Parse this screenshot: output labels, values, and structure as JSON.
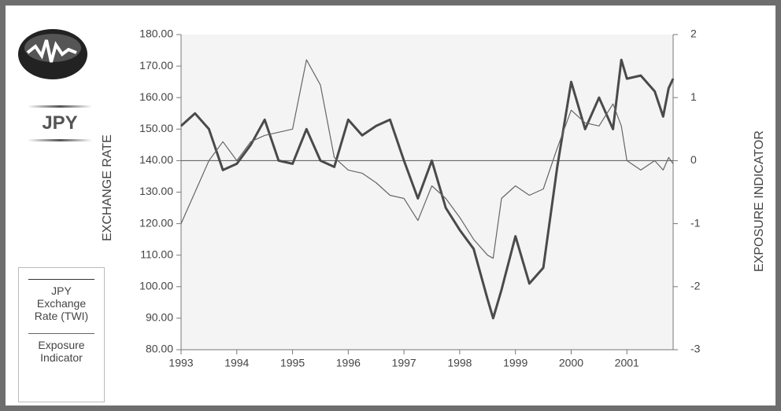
{
  "chart_data": {
    "type": "line",
    "label": "JPY",
    "ylabel": "EXCHANGE RATE",
    "y2label": "EXPOSURE INDICATOR",
    "x": [
      1993,
      1993.25,
      1993.5,
      1993.75,
      1994,
      1994.25,
      1994.5,
      1994.75,
      1995,
      1995.25,
      1995.5,
      1995.75,
      1996,
      1996.25,
      1996.5,
      1996.75,
      1997,
      1997.25,
      1997.5,
      1997.75,
      1998,
      1998.25,
      1998.5,
      1998.6,
      1998.75,
      1999,
      1999.25,
      1999.5,
      1999.75,
      2000,
      2000.25,
      2000.5,
      2000.75,
      2000.9,
      2001,
      2001.25,
      2001.5,
      2001.65,
      2001.75,
      2001.83
    ],
    "series": [
      {
        "name": "JPY Exchange Rate (TWI)",
        "color": "#4a4a4a",
        "values": [
          151,
          155,
          150,
          137,
          139,
          145,
          153,
          140,
          139,
          150,
          140,
          138,
          153,
          148,
          151,
          153,
          140,
          128,
          140,
          125,
          118,
          112,
          96,
          90,
          99,
          116,
          101,
          106,
          138,
          165,
          150,
          160,
          150,
          172,
          166,
          167,
          162,
          154,
          163,
          166
        ]
      },
      {
        "name": "Exposure Indicator",
        "color": "#666666",
        "axis": "y2",
        "values": [
          -1.0,
          -0.5,
          0.0,
          0.3,
          0.0,
          0.3,
          0.4,
          0.45,
          0.5,
          1.6,
          1.2,
          0.05,
          -0.15,
          -0.2,
          -0.35,
          -0.55,
          -0.6,
          -0.95,
          -0.4,
          -0.6,
          -0.9,
          -1.25,
          -1.5,
          -1.55,
          -0.6,
          -0.4,
          -0.55,
          -0.45,
          0.2,
          0.8,
          0.6,
          0.55,
          0.9,
          0.55,
          0.0,
          -0.15,
          0.0,
          -0.15,
          0.05,
          -0.05
        ]
      }
    ],
    "xlim": [
      1993,
      2001.83
    ],
    "xticks": [
      1993,
      1994,
      1995,
      1996,
      1997,
      1998,
      1999,
      2000,
      2001
    ],
    "ylim": [
      80,
      180
    ],
    "yticks": [
      {
        "value": 80,
        "label": "80.00"
      },
      {
        "value": 90,
        "label": "90.00"
      },
      {
        "value": 100,
        "label": "100.00"
      },
      {
        "value": 110,
        "label": "110.00"
      },
      {
        "value": 120,
        "label": "120.00"
      },
      {
        "value": 130,
        "label": "130.00"
      },
      {
        "value": 140,
        "label": "140.00"
      },
      {
        "value": 150,
        "label": "150.00"
      },
      {
        "value": 160,
        "label": "160.00"
      },
      {
        "value": 170,
        "label": "170.00"
      },
      {
        "value": 180,
        "label": "180.00"
      }
    ],
    "y2lim": [
      -3,
      2
    ],
    "y2ticks": [
      -3,
      -2,
      -1,
      0,
      1,
      2
    ],
    "legend": "bottom-left"
  }
}
